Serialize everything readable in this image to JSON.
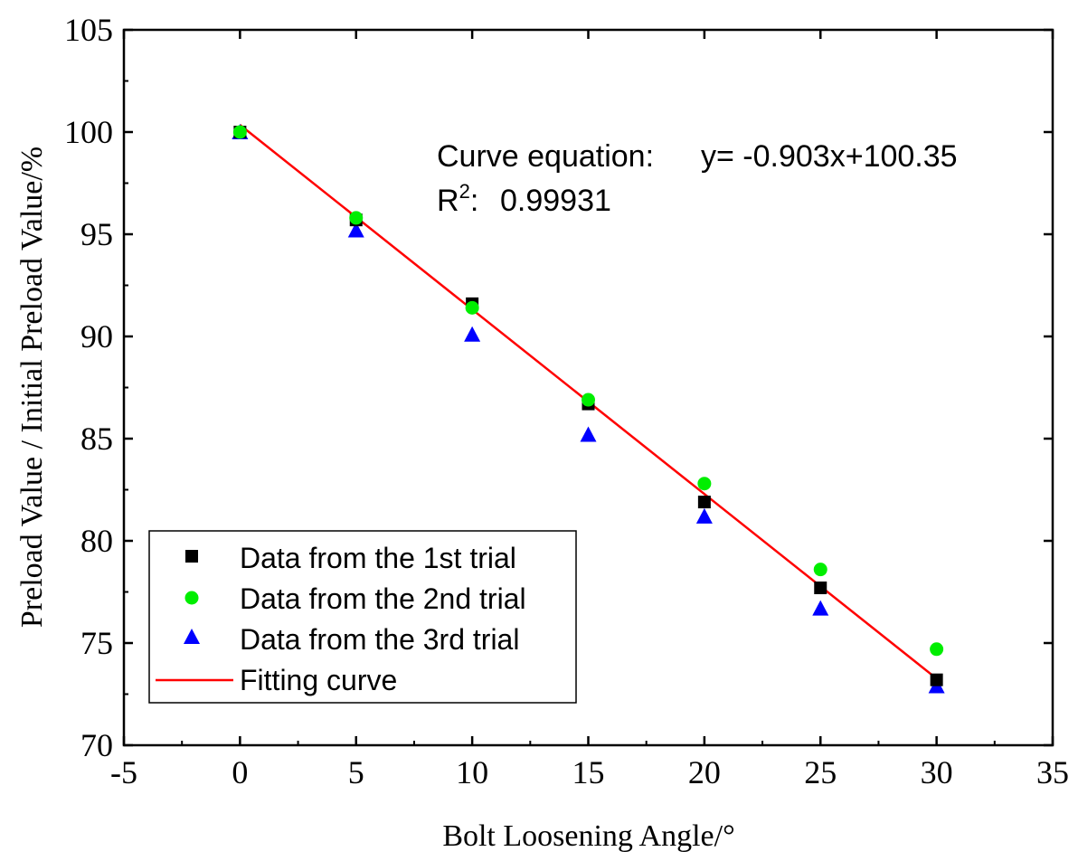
{
  "chart_data": {
    "type": "scatter",
    "title": "",
    "xlabel": "Bolt Loosening Angle/°",
    "ylabel": "Preload Value / Initial Preload Value/%",
    "xlim": [
      -5,
      35
    ],
    "ylim": [
      70,
      105
    ],
    "xticks": [
      -5,
      0,
      5,
      10,
      15,
      20,
      25,
      30,
      35
    ],
    "yticks": [
      70,
      75,
      80,
      85,
      90,
      95,
      100,
      105
    ],
    "x": [
      0,
      5,
      10,
      15,
      20,
      25,
      30
    ],
    "series": [
      {
        "name": "Data from the 1st trial",
        "marker": "square",
        "color": "#000000",
        "values": [
          100,
          95.7,
          91.6,
          86.7,
          81.9,
          77.7,
          73.2
        ]
      },
      {
        "name": "Data from the 2nd trial",
        "marker": "circle",
        "color": "#00ee00",
        "values": [
          100,
          95.8,
          91.4,
          86.9,
          82.8,
          78.6,
          74.7
        ]
      },
      {
        "name": "Data from the 3rd trial",
        "marker": "triangle",
        "color": "#0000ff",
        "values": [
          100,
          95.2,
          90.1,
          85.2,
          81.2,
          76.7,
          72.9
        ]
      }
    ],
    "fit": {
      "name": "Fitting curve",
      "color": "#ff0000",
      "slope": -0.903,
      "intercept": 100.35,
      "x_range": [
        0,
        30
      ]
    },
    "annotation": {
      "equation_label": "Curve equation:",
      "equation": "y= -0.903x+100.35",
      "r2_label": "R",
      "r2_sup": "2",
      "r2_sep": ":",
      "r2_value": "0.99931"
    },
    "legend_position": "bottom-left"
  }
}
